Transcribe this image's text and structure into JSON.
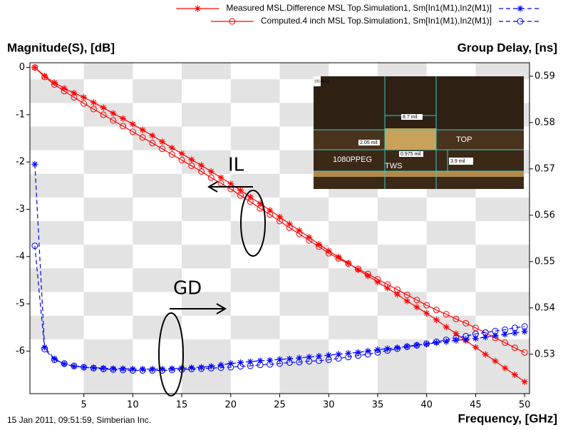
{
  "chart_data": {
    "type": "line",
    "ylabel": "Magnitude(S), [dB]",
    "y2label": "Group Delay, [ns]",
    "xlabel": "Frequency, [GHz]",
    "footer": "15 Jan 2011, 09:51:59, Simberian Inc.",
    "annotations": [
      "IL",
      "GD"
    ],
    "inset_labels": [
      "19145 L1",
      "8.7 mil",
      "2.05 mil",
      "TOP",
      "0.975 mil",
      "1080PPEG",
      "TWS",
      "3.9 mil"
    ],
    "xlim": [
      -0.5,
      50.5
    ],
    "xticks": [
      5,
      10,
      15,
      20,
      25,
      30,
      35,
      40,
      45,
      50
    ],
    "ylim": [
      -6.9,
      0.1
    ],
    "yticks": [
      0,
      -1,
      -2,
      -3,
      -4,
      -5,
      -6
    ],
    "y2lim": [
      0.5215,
      0.5929
    ],
    "y2ticks": [
      0.53,
      0.54,
      0.55,
      0.56,
      0.57,
      0.58,
      0.59
    ],
    "x": [
      0,
      1,
      2,
      3,
      4,
      5,
      6,
      7,
      8,
      9,
      10,
      11,
      12,
      13,
      14,
      15,
      16,
      17,
      18,
      19,
      20,
      21,
      22,
      23,
      24,
      25,
      26,
      27,
      28,
      29,
      30,
      31,
      32,
      33,
      34,
      35,
      36,
      37,
      38,
      39,
      40,
      41,
      42,
      43,
      44,
      45,
      46,
      47,
      48,
      49,
      50
    ],
    "series": [
      {
        "name": "Measured MSL.Difference MSL Top.Simulation1, Sm[In1(M1),In2(M1)]",
        "color": "#ff0000",
        "marker": "asterisk",
        "values": [
          0,
          -0.18,
          -0.32,
          -0.44,
          -0.54,
          -0.63,
          -0.74,
          -0.85,
          -0.97,
          -1.08,
          -1.2,
          -1.32,
          -1.44,
          -1.57,
          -1.7,
          -1.82,
          -1.95,
          -2.07,
          -2.2,
          -2.33,
          -2.46,
          -2.6,
          -2.74,
          -2.88,
          -3.02,
          -3.16,
          -3.31,
          -3.45,
          -3.59,
          -3.74,
          -3.88,
          -4.01,
          -4.14,
          -4.28,
          -4.41,
          -4.54,
          -4.67,
          -4.8,
          -4.94,
          -5.07,
          -5.2,
          -5.34,
          -5.49,
          -5.63,
          -5.78,
          -5.92,
          -6.07,
          -6.21,
          -6.36,
          -6.5,
          -6.65
        ]
      },
      {
        "name": "Computed.4 inch MSL Top.Simulation1, Sm[In1(M1),In2(M1)]",
        "color": "#ff0000",
        "marker": "circle",
        "values": [
          0,
          -0.2,
          -0.36,
          -0.5,
          -0.63,
          -0.76,
          -0.88,
          -1.0,
          -1.12,
          -1.24,
          -1.36,
          -1.48,
          -1.6,
          -1.72,
          -1.84,
          -1.96,
          -2.08,
          -2.2,
          -2.33,
          -2.45,
          -2.57,
          -2.71,
          -2.84,
          -2.98,
          -3.11,
          -3.25,
          -3.39,
          -3.52,
          -3.66,
          -3.79,
          -3.93,
          -4.04,
          -4.15,
          -4.26,
          -4.37,
          -4.48,
          -4.59,
          -4.7,
          -4.81,
          -4.92,
          -5.03,
          -5.13,
          -5.22,
          -5.32,
          -5.41,
          -5.51,
          -5.61,
          -5.72,
          -5.82,
          -5.93,
          -6.03
        ]
      },
      {
        "color": "#0000ff",
        "marker": "asterisk",
        "axis": "y2",
        "dash": true,
        "values": [
          0.571,
          0.5315,
          0.529,
          0.5279,
          0.5274,
          0.5272,
          0.5271,
          0.527,
          0.5269,
          0.5269,
          0.5268,
          0.5268,
          0.5268,
          0.5268,
          0.5269,
          0.527,
          0.5271,
          0.5272,
          0.5274,
          0.5277,
          0.528,
          0.5282,
          0.5284,
          0.5286,
          0.5287,
          0.5289,
          0.529,
          0.5292,
          0.5294,
          0.5296,
          0.5298,
          0.53,
          0.5302,
          0.5304,
          0.5307,
          0.531,
          0.5312,
          0.5314,
          0.5317,
          0.532,
          0.5322,
          0.5325,
          0.5327,
          0.533,
          0.5332,
          0.5334,
          0.5337,
          0.534,
          0.5343,
          0.5346,
          0.5349
        ]
      },
      {
        "color": "#0000ff",
        "marker": "circle",
        "axis": "y2",
        "dash": true,
        "values": [
          0.5534,
          0.5311,
          0.5288,
          0.528,
          0.5275,
          0.5272,
          0.527,
          0.5268,
          0.5267,
          0.5266,
          0.5265,
          0.5265,
          0.5265,
          0.5265,
          0.5266,
          0.5267,
          0.5268,
          0.5269,
          0.527,
          0.5271,
          0.5272,
          0.5274,
          0.5275,
          0.5277,
          0.5278,
          0.528,
          0.5282,
          0.5283,
          0.5285,
          0.5286,
          0.5288,
          0.5291,
          0.5294,
          0.5297,
          0.53,
          0.5304,
          0.5308,
          0.5312,
          0.5316,
          0.5319,
          0.5323,
          0.5327,
          0.5331,
          0.5335,
          0.5339,
          0.5344,
          0.5347,
          0.535,
          0.5353,
          0.5357,
          0.536
        ]
      }
    ]
  }
}
